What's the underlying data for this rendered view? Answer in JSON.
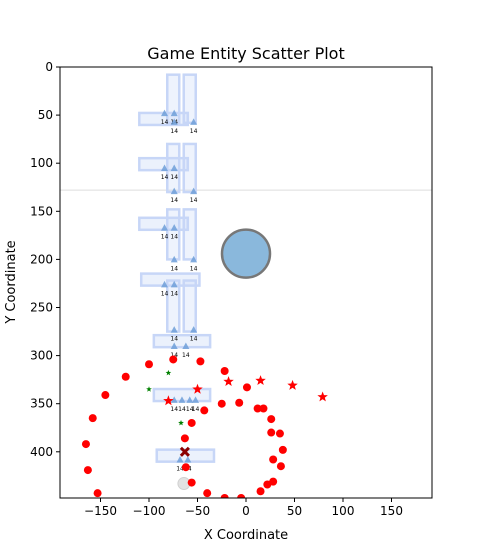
{
  "chart_data": {
    "type": "scatter",
    "title": "Game Entity Scatter Plot",
    "xlabel": "X Coordinate",
    "ylabel": "Y Coordinate",
    "xlim": [
      -190,
      190
    ],
    "ylim": [
      448,
      0
    ],
    "y_inverted": true,
    "grid": false,
    "x_ticks": [
      -150,
      -100,
      -50,
      0,
      50,
      100,
      150
    ],
    "y_ticks": [
      0,
      50,
      100,
      150,
      200,
      250,
      300,
      350,
      400
    ],
    "reference_line_y": 128,
    "platforms": [
      {
        "x": [
          -110,
          -60
        ],
        "y": 54
      },
      {
        "x": [
          -110,
          -60
        ],
        "y": 101
      },
      {
        "x": [
          -110,
          -60
        ],
        "y": 163
      },
      {
        "x": [
          -108,
          -48
        ],
        "y": 221
      },
      {
        "x": [
          -95,
          -37
        ],
        "y": 285
      },
      {
        "x": [
          -95,
          -37
        ],
        "y": 341
      },
      {
        "x": [
          -92,
          -33
        ],
        "y": 404
      }
    ],
    "columns": [
      {
        "x": -75,
        "y": [
          8,
          58
        ]
      },
      {
        "x": -58,
        "y": [
          8,
          58
        ]
      },
      {
        "x": -75,
        "y": [
          80,
          130
        ]
      },
      {
        "x": -58,
        "y": [
          80,
          130
        ]
      },
      {
        "x": -75,
        "y": [
          148,
          200
        ]
      },
      {
        "x": -58,
        "y": [
          148,
          200
        ]
      },
      {
        "x": -75,
        "y": [
          222,
          275
        ]
      },
      {
        "x": -58,
        "y": [
          222,
          275
        ]
      }
    ],
    "triangles": [
      {
        "x": -84,
        "y": 48
      },
      {
        "x": -74,
        "y": 48
      },
      {
        "x": -74,
        "y": 57
      },
      {
        "x": -54,
        "y": 57
      },
      {
        "x": -84,
        "y": 105
      },
      {
        "x": -74,
        "y": 105
      },
      {
        "x": -74,
        "y": 129
      },
      {
        "x": -54,
        "y": 129
      },
      {
        "x": -84,
        "y": 167
      },
      {
        "x": -74,
        "y": 167
      },
      {
        "x": -74,
        "y": 200
      },
      {
        "x": -54,
        "y": 200
      },
      {
        "x": -84,
        "y": 226
      },
      {
        "x": -74,
        "y": 226
      },
      {
        "x": -74,
        "y": 273
      },
      {
        "x": -54,
        "y": 273
      },
      {
        "x": -74,
        "y": 290
      },
      {
        "x": -62,
        "y": 290
      },
      {
        "x": -74,
        "y": 346
      },
      {
        "x": -66,
        "y": 346
      },
      {
        "x": -58,
        "y": 346
      },
      {
        "x": -52,
        "y": 346
      },
      {
        "x": -68,
        "y": 408
      },
      {
        "x": -60,
        "y": 408
      }
    ],
    "triangle_label": "14",
    "large_circle": {
      "x": 0,
      "y": 194,
      "color": "#8ab8dc"
    },
    "gray_circle": {
      "x": -64,
      "y": 433
    },
    "red_circles": [
      {
        "x": -100,
        "y": 309
      },
      {
        "x": -75,
        "y": 304
      },
      {
        "x": -124,
        "y": 322
      },
      {
        "x": -145,
        "y": 341
      },
      {
        "x": -158,
        "y": 365
      },
      {
        "x": -165,
        "y": 392
      },
      {
        "x": -163,
        "y": 419
      },
      {
        "x": -153,
        "y": 443
      },
      {
        "x": -47,
        "y": 306
      },
      {
        "x": -22,
        "y": 316
      },
      {
        "x": 1,
        "y": 333
      },
      {
        "x": -7,
        "y": 349
      },
      {
        "x": -25,
        "y": 350
      },
      {
        "x": -43,
        "y": 357
      },
      {
        "x": -56,
        "y": 370
      },
      {
        "x": -63,
        "y": 386
      },
      {
        "x": 12,
        "y": 355
      },
      {
        "x": 18,
        "y": 355
      },
      {
        "x": 26,
        "y": 366
      },
      {
        "x": 26,
        "y": 380
      },
      {
        "x": 35,
        "y": 381
      },
      {
        "x": 38,
        "y": 398
      },
      {
        "x": 28,
        "y": 408
      },
      {
        "x": 36,
        "y": 415
      },
      {
        "x": 28,
        "y": 431
      },
      {
        "x": 22,
        "y": 434
      },
      {
        "x": 15,
        "y": 441
      },
      {
        "x": -40,
        "y": 443
      },
      {
        "x": -62,
        "y": 416
      },
      {
        "x": -56,
        "y": 432
      },
      {
        "x": -5,
        "y": 448
      },
      {
        "x": -22,
        "y": 448
      }
    ],
    "red_stars": [
      {
        "x": -18,
        "y": 327
      },
      {
        "x": 15,
        "y": 326
      },
      {
        "x": 48,
        "y": 331
      },
      {
        "x": 79,
        "y": 343
      },
      {
        "x": -50,
        "y": 335
      },
      {
        "x": -80,
        "y": 347
      }
    ],
    "green_stars": [
      {
        "x": -80,
        "y": 318
      },
      {
        "x": -100,
        "y": 335
      },
      {
        "x": -67,
        "y": 370
      }
    ],
    "x_marker": {
      "x": -63,
      "y": 400
    },
    "colors": {
      "red": "#ff0000",
      "green": "#008000",
      "blue_marker": "#6f9fd8",
      "platform": "#c7d6f7",
      "dark_red": "#8b0000"
    }
  },
  "title": "Game Entity Scatter Plot",
  "xlabel": "X Coordinate",
  "ylabel": "Y Coordinate"
}
